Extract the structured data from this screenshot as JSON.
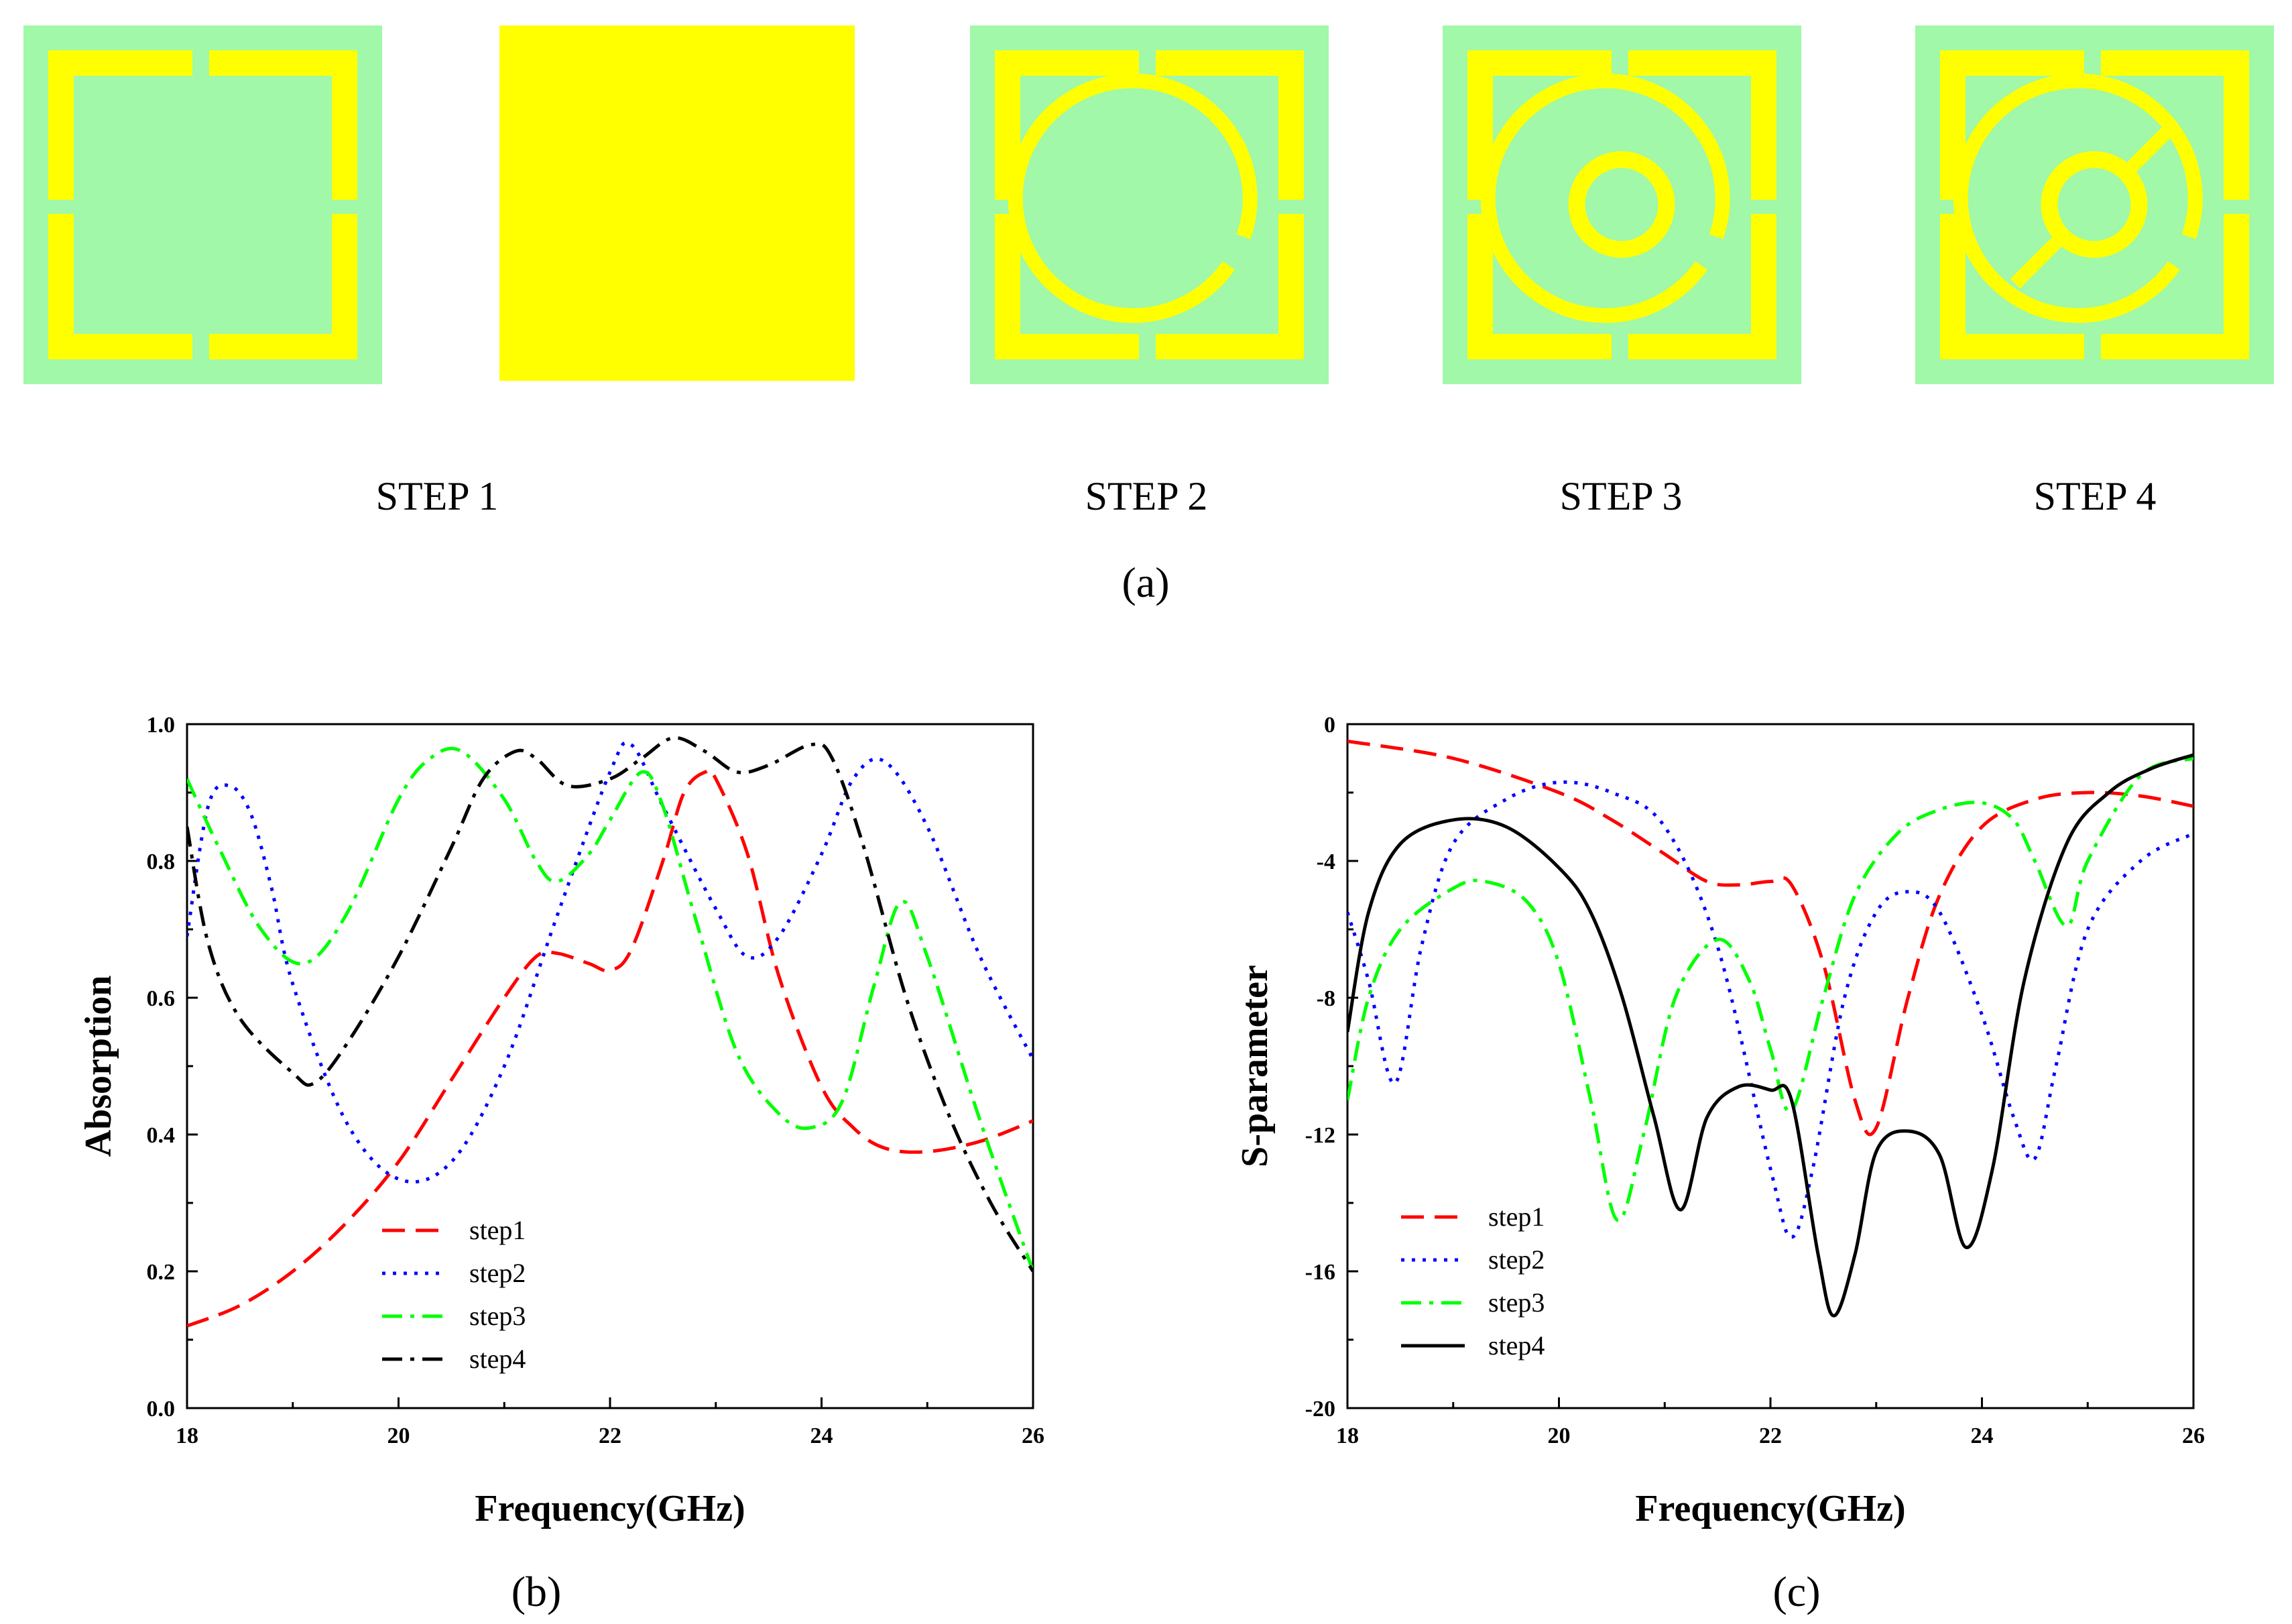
{
  "colors": {
    "substrate": "#a0f8a8",
    "metal": "#ffff00",
    "step1": "#ff0000",
    "step2": "#0000ff",
    "step3": "#00ff00",
    "step4": "#000000"
  },
  "panel_a": {
    "label": "(a)",
    "structures": [
      {
        "name": "substrate-with-split-ring",
        "caption": "STEP 1"
      },
      {
        "name": "ground-plane",
        "caption": ""
      },
      {
        "name": "split-ring-plus-open-circle",
        "caption": "STEP 2"
      },
      {
        "name": "split-ring-plus-two-circles",
        "caption": "STEP 3"
      },
      {
        "name": "split-ring-plus-connected-circles",
        "caption": "STEP 4"
      }
    ]
  },
  "chart_data": [
    {
      "id": "b",
      "panel_label": "(b)",
      "type": "line",
      "xlabel": "Frequency(GHz)",
      "ylabel": "Absorption",
      "xlim": [
        18,
        26
      ],
      "ylim": [
        0,
        1.0
      ],
      "xticks": [
        18,
        20,
        22,
        24,
        26
      ],
      "xtick_labels": [
        "18",
        "20",
        "22",
        "24",
        "26"
      ],
      "yticks": [
        0,
        0.2,
        0.4,
        0.6,
        0.8,
        1.0
      ],
      "ytick_labels": [
        "0.0",
        "0.2",
        "0.4",
        "0.6",
        "0.8",
        "1.0"
      ],
      "legend_position": "bottom-left",
      "series": [
        {
          "name": "step1",
          "color_key": "step1",
          "dash": "long-dash",
          "x": [
            18,
            18.5,
            19,
            19.5,
            20,
            20.5,
            21,
            21.3,
            21.5,
            21.8,
            22,
            22.2,
            22.5,
            22.7,
            22.9,
            23,
            23.3,
            23.6,
            24,
            24.3,
            24.6,
            25,
            25.5,
            26
          ],
          "y": [
            0.12,
            0.15,
            0.2,
            0.27,
            0.36,
            0.48,
            0.6,
            0.66,
            0.665,
            0.65,
            0.64,
            0.67,
            0.8,
            0.9,
            0.93,
            0.92,
            0.81,
            0.63,
            0.47,
            0.41,
            0.38,
            0.375,
            0.39,
            0.42
          ]
        },
        {
          "name": "step2",
          "color_key": "step2",
          "dash": "dot",
          "x": [
            18,
            18.2,
            18.4,
            18.6,
            18.8,
            19,
            19.5,
            20,
            20.5,
            21,
            21.5,
            22,
            22.2,
            22.5,
            23,
            23.3,
            23.6,
            24,
            24.3,
            24.6,
            25,
            25.5,
            26
          ],
          "y": [
            0.69,
            0.88,
            0.91,
            0.87,
            0.76,
            0.62,
            0.42,
            0.335,
            0.36,
            0.5,
            0.72,
            0.93,
            0.97,
            0.88,
            0.73,
            0.66,
            0.69,
            0.81,
            0.92,
            0.945,
            0.85,
            0.66,
            0.51
          ]
        },
        {
          "name": "step3",
          "color_key": "step3",
          "dash": "dash-dot",
          "x": [
            18,
            18.3,
            18.7,
            19.1,
            19.5,
            20,
            20.3,
            20.6,
            21,
            21.3,
            21.5,
            21.8,
            22,
            22.3,
            22.5,
            22.8,
            23.2,
            23.6,
            23.9,
            24.2,
            24.5,
            24.75,
            25,
            25.5,
            26
          ],
          "y": [
            0.92,
            0.82,
            0.7,
            0.65,
            0.72,
            0.89,
            0.95,
            0.96,
            0.89,
            0.8,
            0.77,
            0.81,
            0.86,
            0.93,
            0.88,
            0.72,
            0.52,
            0.43,
            0.41,
            0.45,
            0.62,
            0.74,
            0.66,
            0.42,
            0.2
          ]
        },
        {
          "name": "step4",
          "color_key": "step4",
          "dash": "dash-dot",
          "x": [
            18,
            18.2,
            18.5,
            19,
            19.2,
            19.5,
            20,
            20.5,
            20.8,
            21.1,
            21.3,
            21.6,
            22,
            22.3,
            22.6,
            22.9,
            23.2,
            23.5,
            23.9,
            24.1,
            24.4,
            24.8,
            25.2,
            25.6,
            26
          ],
          "y": [
            0.85,
            0.68,
            0.57,
            0.49,
            0.475,
            0.53,
            0.66,
            0.82,
            0.92,
            0.96,
            0.95,
            0.91,
            0.92,
            0.95,
            0.98,
            0.96,
            0.93,
            0.94,
            0.97,
            0.95,
            0.82,
            0.6,
            0.43,
            0.3,
            0.2
          ]
        }
      ]
    },
    {
      "id": "c",
      "panel_label": "(c)",
      "type": "line",
      "xlabel": "Frequency(GHz)",
      "ylabel": "S-parameter",
      "xlim": [
        18,
        26
      ],
      "ylim": [
        -20,
        0
      ],
      "xticks": [
        18,
        20,
        22,
        24,
        26
      ],
      "xtick_labels": [
        "18",
        "20",
        "22",
        "24",
        "26"
      ],
      "yticks": [
        0,
        -4,
        -8,
        -12,
        -16,
        -20
      ],
      "ytick_labels": [
        "0",
        "-4",
        "-8",
        "-12",
        "-16",
        "-20"
      ],
      "legend_position": "bottom-left",
      "series": [
        {
          "name": "step1",
          "color_key": "step1",
          "dash": "long-dash",
          "x": [
            18,
            19,
            20,
            20.5,
            21,
            21.4,
            21.7,
            22,
            22.2,
            22.5,
            22.8,
            23,
            23.3,
            23.6,
            24,
            24.5,
            25,
            25.5,
            26
          ],
          "y": [
            -0.5,
            -1.0,
            -2.0,
            -2.8,
            -3.8,
            -4.6,
            -4.7,
            -4.6,
            -4.7,
            -7.0,
            -11.0,
            -11.8,
            -8.0,
            -5.0,
            -3.0,
            -2.2,
            -2.0,
            -2.1,
            -2.4
          ]
        },
        {
          "name": "step2",
          "color_key": "step2",
          "dash": "dot",
          "x": [
            18,
            18.2,
            18.45,
            18.7,
            19,
            19.5,
            20,
            20.5,
            21,
            21.5,
            22,
            22.2,
            22.4,
            22.7,
            23,
            23.3,
            23.6,
            24,
            24.3,
            24.5,
            24.7,
            25,
            25.5,
            26
          ],
          "y": [
            -5.5,
            -7.5,
            -10.5,
            -6.5,
            -3.5,
            -2.2,
            -1.7,
            -2.0,
            -3.0,
            -6.5,
            -13.0,
            -15.0,
            -13.0,
            -8.0,
            -5.5,
            -4.9,
            -5.5,
            -8.5,
            -11.5,
            -12.7,
            -10.0,
            -6.0,
            -4.0,
            -3.2
          ]
        },
        {
          "name": "step3",
          "color_key": "step3",
          "dash": "dash-dot",
          "x": [
            18,
            18.2,
            18.5,
            19,
            19.3,
            19.7,
            20,
            20.3,
            20.55,
            20.8,
            21.1,
            21.5,
            21.8,
            22,
            22.2,
            22.5,
            22.8,
            23.2,
            23.6,
            24,
            24.3,
            24.5,
            24.8,
            25,
            25.5,
            26
          ],
          "y": [
            -11.0,
            -8.0,
            -6.0,
            -4.8,
            -4.6,
            -5.2,
            -7.0,
            -11.0,
            -14.5,
            -12.0,
            -8.0,
            -6.3,
            -7.5,
            -9.5,
            -11.3,
            -8.0,
            -5.0,
            -3.2,
            -2.5,
            -2.3,
            -2.8,
            -4.0,
            -5.9,
            -4.0,
            -1.5,
            -1.0
          ]
        },
        {
          "name": "step4",
          "color_key": "step4",
          "dash": "solid",
          "x": [
            18,
            18.2,
            18.5,
            19,
            19.5,
            20,
            20.3,
            20.6,
            20.9,
            21.15,
            21.4,
            21.7,
            22,
            22.2,
            22.45,
            22.6,
            22.8,
            23,
            23.3,
            23.6,
            23.85,
            24.1,
            24.4,
            24.8,
            25.2,
            25.6,
            26
          ],
          "y": [
            -9.0,
            -5.5,
            -3.5,
            -2.8,
            -3.0,
            -4.2,
            -5.5,
            -8.0,
            -11.5,
            -14.2,
            -11.5,
            -10.6,
            -10.7,
            -11.0,
            -15.5,
            -17.3,
            -15.5,
            -12.5,
            -11.9,
            -12.6,
            -15.3,
            -13.0,
            -7.5,
            -3.5,
            -2.0,
            -1.3,
            -0.9
          ]
        }
      ]
    }
  ]
}
